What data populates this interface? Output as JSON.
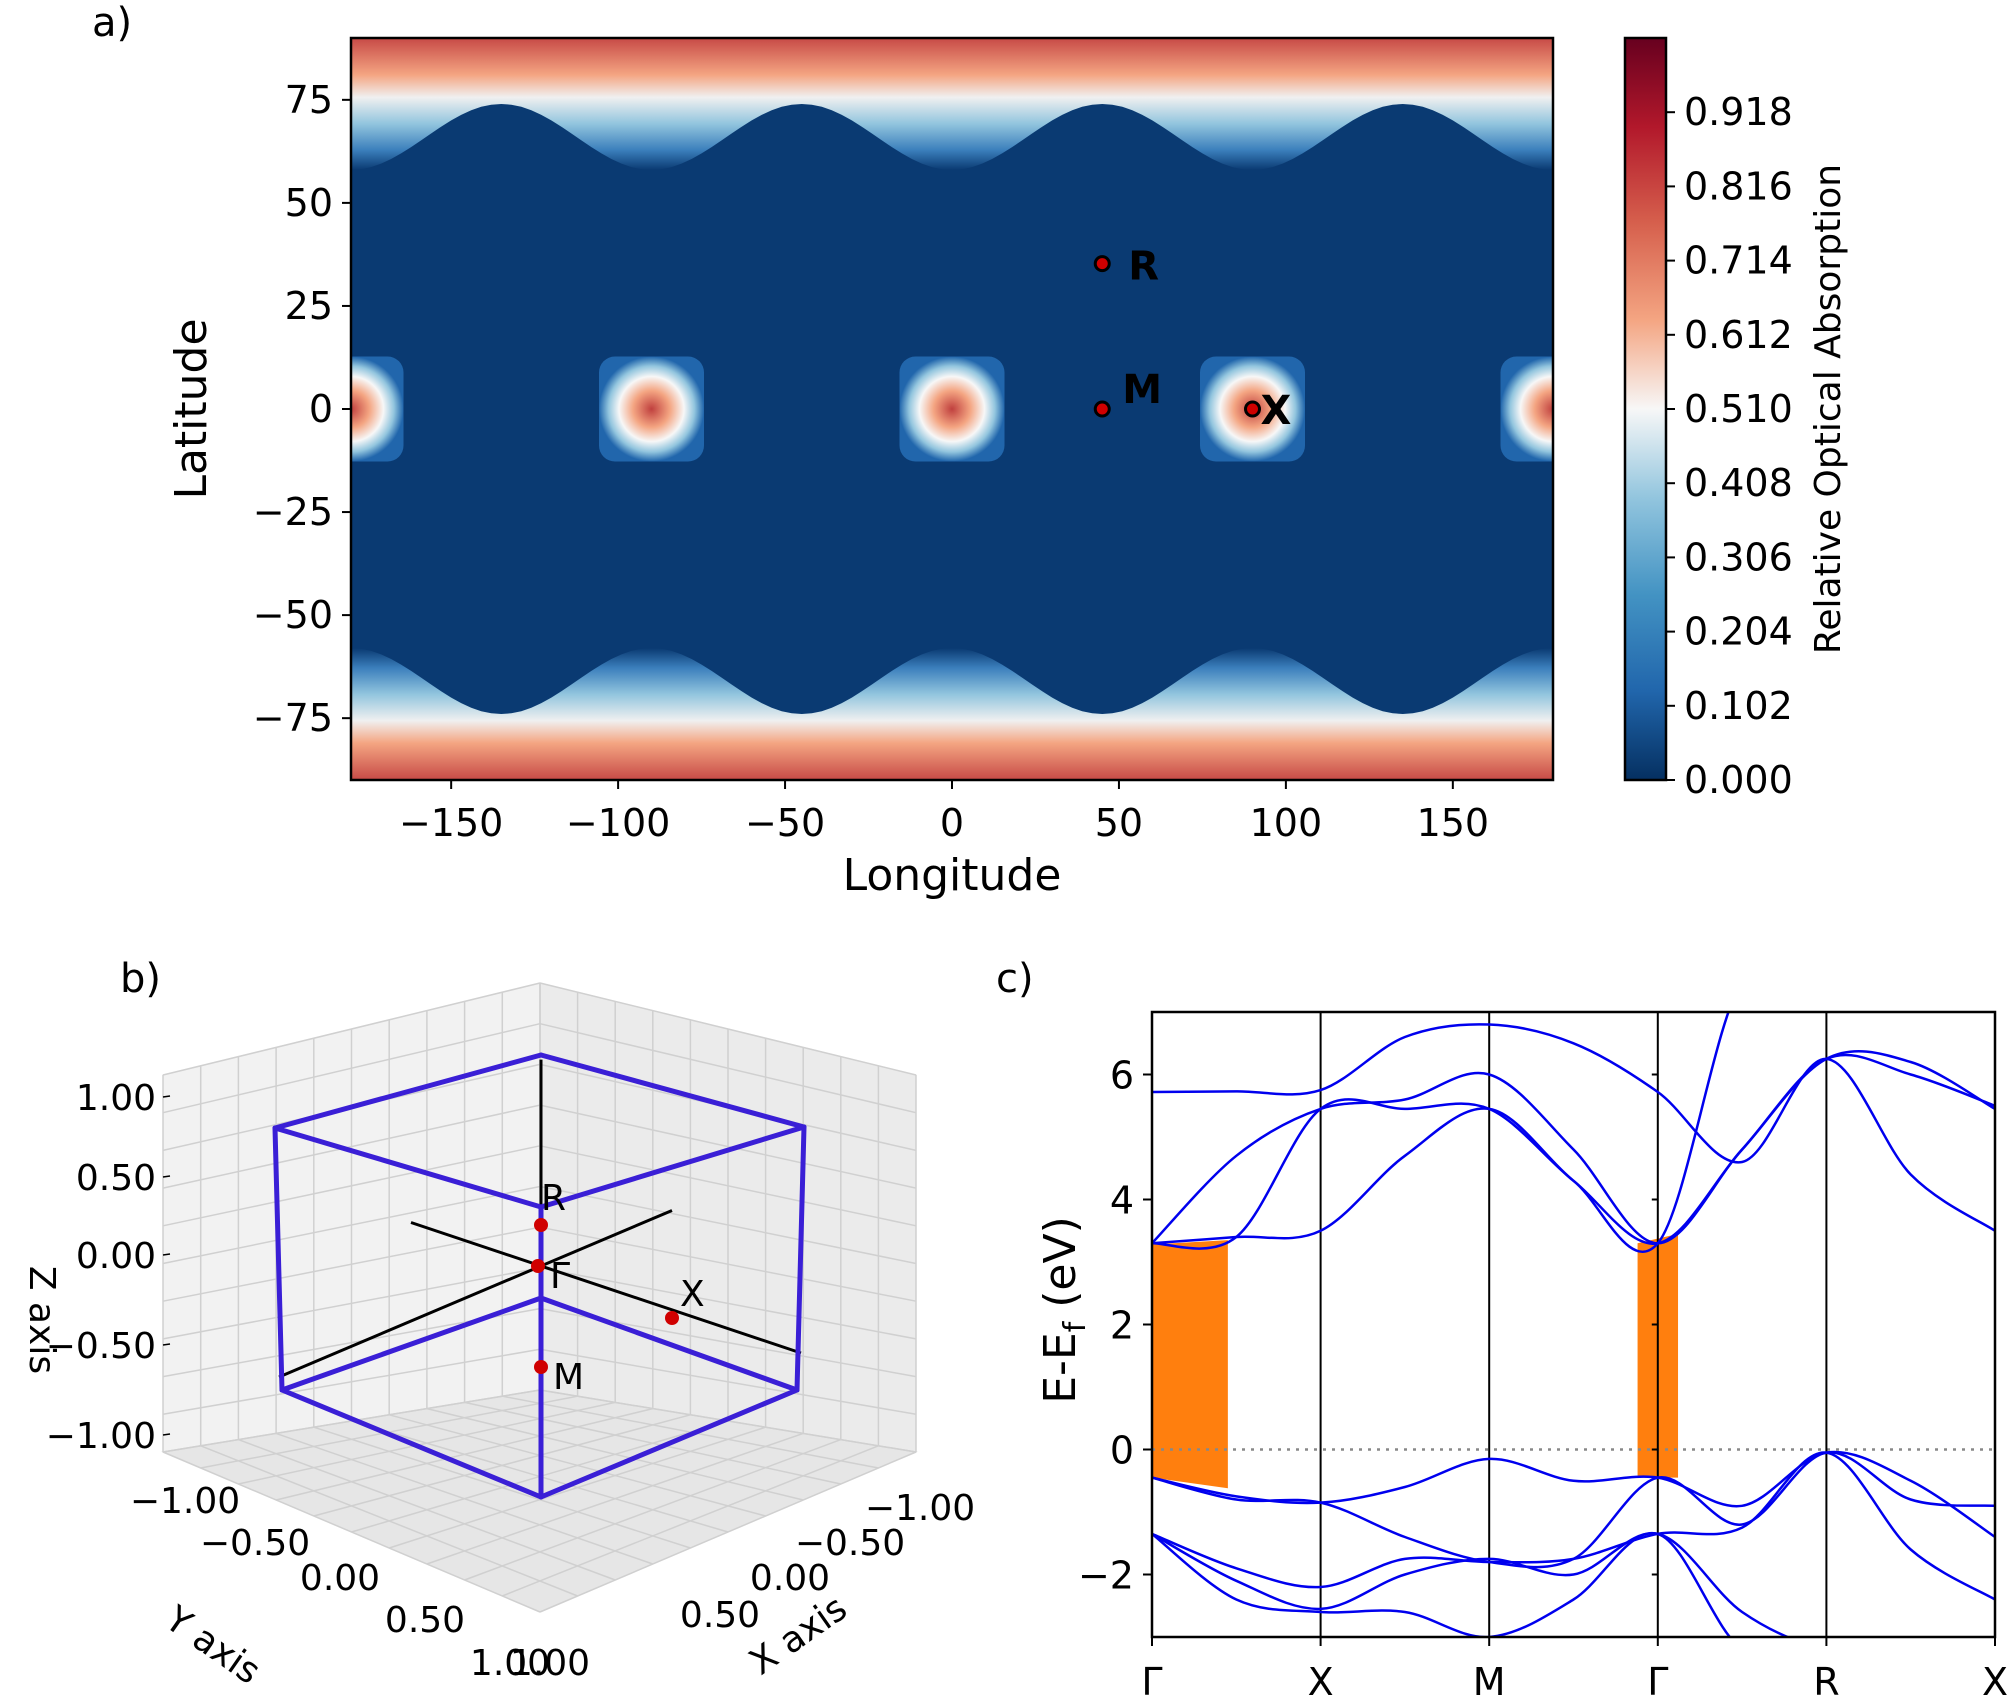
{
  "chart_data": [
    {
      "panel": "a)",
      "type": "heatmap",
      "xlabel": "Longitude",
      "ylabel": "Latitude",
      "xlim": [
        -180,
        180
      ],
      "ylim": [
        -90,
        90
      ],
      "xticks": [
        -150,
        -100,
        -50,
        0,
        50,
        100,
        150
      ],
      "xtick_labels": [
        "−150",
        "−100",
        "−50",
        "0",
        "50",
        "100",
        "150"
      ],
      "yticks": [
        75,
        50,
        25,
        0,
        -25,
        -50,
        -75
      ],
      "ytick_labels": [
        "75",
        "50",
        "25",
        "0",
        "−25",
        "−50",
        "−75"
      ],
      "colormap": [
        "#053061",
        "#2166ac",
        "#4393c3",
        "#92c5de",
        "#f7f7f7",
        "#f4a582",
        "#d6604d",
        "#b2182b",
        "#67001f"
      ],
      "colorbar": {
        "label": "Relative Optical Absorption",
        "ticks": [
          0.0,
          0.102,
          0.204,
          0.306,
          0.408,
          0.51,
          0.612,
          0.714,
          0.816,
          0.918
        ],
        "tick_labels": [
          "0.000",
          "0.102",
          "0.204",
          "0.306",
          "0.408",
          "0.510",
          "0.612",
          "0.714",
          "0.816",
          "0.918"
        ],
        "range": [
          0,
          1.02
        ]
      },
      "hotspots": [
        {
          "lon": -180,
          "lat": 0
        },
        {
          "lon": -90,
          "lat": 0
        },
        {
          "lon": 0,
          "lat": 0
        },
        {
          "lon": 90,
          "lat": 0
        },
        {
          "lon": 180,
          "lat": 0
        }
      ],
      "points": [
        {
          "label": "R",
          "lon": 45,
          "lat": 35.26
        },
        {
          "label": "M",
          "lon": 45,
          "lat": 0
        },
        {
          "label": "X",
          "lon": 90,
          "lat": 0
        }
      ],
      "point_color": "#d00000"
    },
    {
      "panel": "b)",
      "type": "scatter",
      "projection": "3d",
      "xlabel": "X axis",
      "ylabel": "Y axis",
      "zlabel": "Z axis",
      "xlim": [
        -1,
        1
      ],
      "ylim": [
        -1,
        1
      ],
      "zlim": [
        -1,
        1
      ],
      "tick_labels_z": [
        "1.00",
        "0.50",
        "0.00",
        "−0.50",
        "−1.00"
      ],
      "tick_labels_y": [
        "−1.00",
        "−0.50",
        "0.00",
        "0.50",
        "1.00"
      ],
      "tick_labels_x": [
        "−1.00",
        "−0.50",
        "0.00",
        "0.50",
        "1.00"
      ],
      "cube_color": "#3a1fd6",
      "points": [
        {
          "label": "R",
          "x": 0.5,
          "y": 0.5,
          "z": 0.5
        },
        {
          "label": "Γ",
          "x": 0,
          "y": 0,
          "z": 0
        },
        {
          "label": "X",
          "x": 0.5,
          "y": 0,
          "z": 0
        },
        {
          "label": "M",
          "x": 0.5,
          "y": 0.5,
          "z": 0
        }
      ],
      "point_color": "#d00000"
    },
    {
      "panel": "c)",
      "type": "line",
      "ylabel": "E-E",
      "ylabel_sub": "f",
      "ylabel_unit": " (eV)",
      "ylim": [
        -3,
        7
      ],
      "yticks": [
        -2,
        0,
        2,
        4,
        6
      ],
      "ytick_labels": [
        "−2",
        "0",
        "2",
        "4",
        "6"
      ],
      "kpoints": [
        "Γ",
        "X",
        "M",
        "Γ",
        "R",
        "X"
      ],
      "kpos": [
        0,
        1,
        2,
        3,
        4,
        5
      ],
      "fermi_level": 0,
      "band_color": "#0000ee",
      "shade_color": "#ff7f0e",
      "shaded_regions": [
        {
          "x0": 0.0,
          "x1": 0.45,
          "top_start": 3.28,
          "top_end": 3.35,
          "bottom_start": -0.45,
          "bottom_end": -0.62
        },
        {
          "x0": 2.88,
          "x1": 3.12,
          "top_start": 3.3,
          "top_end": 3.45,
          "bottom_start": -0.45,
          "bottom_end": -0.45
        }
      ],
      "series": [
        {
          "x": [
            0,
            0.5,
            1,
            1.5,
            2,
            2.5,
            3,
            3.5,
            4,
            4.5,
            5
          ],
          "values": [
            5.72,
            5.73,
            5.75,
            6.6,
            6.8,
            6.5,
            5.72,
            4.6,
            6.25,
            4.4,
            3.5
          ]
        },
        {
          "x": [
            0,
            0.5,
            1,
            1.5,
            2,
            2.5,
            3,
            3.5,
            4,
            4.5,
            5
          ],
          "values": [
            3.3,
            4.7,
            5.45,
            5.6,
            6.0,
            4.8,
            3.3,
            4.8,
            6.25,
            6.0,
            5.5
          ]
        },
        {
          "x": [
            0,
            0.5,
            1,
            1.5,
            2,
            2.5,
            3,
            3.5,
            4,
            4.5,
            5
          ],
          "values": [
            3.3,
            3.4,
            3.5,
            4.7,
            5.45,
            4.3,
            3.3,
            4.8,
            6.25,
            6.2,
            5.45
          ]
        },
        {
          "x": [
            0,
            0.5,
            1,
            1.5,
            2,
            2.5,
            3,
            3.5,
            4,
            4.5,
            5
          ],
          "values": [
            3.3,
            3.4,
            5.45,
            5.45,
            5.45,
            4.3,
            3.3,
            7.5,
            7.5,
            7.5,
            7.5
          ]
        },
        {
          "x": [
            0,
            0.5,
            1,
            1.5,
            2,
            2.5,
            3,
            3.5,
            4,
            4.5,
            5
          ],
          "values": [
            -0.45,
            -0.75,
            -0.85,
            -0.6,
            -0.15,
            -0.5,
            -0.45,
            -0.9,
            -0.05,
            -0.5,
            -1.4
          ]
        },
        {
          "x": [
            0,
            0.5,
            1,
            1.5,
            2,
            2.5,
            3,
            3.5,
            4,
            4.5,
            5
          ],
          "values": [
            -0.45,
            -0.8,
            -0.85,
            -1.4,
            -1.8,
            -1.75,
            -0.45,
            -1.2,
            -0.05,
            -0.8,
            -0.9
          ]
        },
        {
          "x": [
            0,
            0.5,
            1,
            1.5,
            2,
            2.5,
            3,
            3.5,
            4,
            4.5,
            5
          ],
          "values": [
            -1.35,
            -1.9,
            -2.2,
            -1.75,
            -1.8,
            -1.75,
            -1.35,
            -1.25,
            -0.05,
            -1.6,
            -2.4
          ]
        },
        {
          "x": [
            0,
            0.5,
            1,
            1.5,
            2,
            2.5,
            3,
            3.5,
            4,
            4.5,
            5
          ],
          "values": [
            -1.35,
            -2.1,
            -2.55,
            -2.0,
            -1.75,
            -2.0,
            -1.35,
            -2.6,
            -3.2,
            -3.2,
            -3.2
          ]
        },
        {
          "x": [
            0,
            0.5,
            1,
            1.5,
            2,
            2.5,
            3,
            3.5,
            4,
            4.5,
            5
          ],
          "values": [
            -1.35,
            -2.4,
            -2.6,
            -2.6,
            -3.0,
            -2.4,
            -1.35,
            -3.2,
            -3.2,
            -3.2,
            -3.2
          ]
        }
      ]
    }
  ]
}
